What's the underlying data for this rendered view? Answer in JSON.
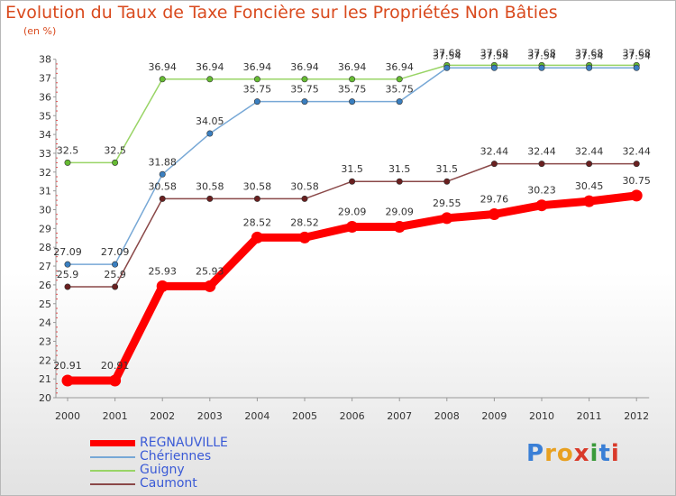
{
  "title": "Evolution du Taux de Taxe Foncière sur les Propriétés Non Bâties",
  "unit": "(en %)",
  "logo": {
    "letters": [
      "P",
      "r",
      "o",
      "x",
      "i",
      "t",
      "i"
    ],
    "colors": [
      "#3a7fd6",
      "#e8a020",
      "#e8a020",
      "#d93a2a",
      "#3a9a3a",
      "#3a7fd6",
      "#d93a2a"
    ]
  },
  "chart_data": {
    "type": "line",
    "title": "Evolution du Taux de Taxe Foncière sur les Propriétés Non Bâties",
    "ylabel": "(en %)",
    "ylim": [
      20,
      38
    ],
    "yticks": [
      "20",
      "21",
      "22",
      "23",
      "24",
      "25",
      "26",
      "27",
      "28",
      "29",
      "30",
      "31",
      "32",
      "33",
      "34",
      "35",
      "36",
      "37",
      "38"
    ],
    "categories": [
      "2000",
      "2001",
      "2002",
      "2003",
      "2004",
      "2005",
      "2006",
      "2007",
      "2008",
      "2009",
      "2010",
      "2011",
      "2012"
    ],
    "series": [
      {
        "name": "Guigny",
        "color": "#99d466",
        "marker": "#66bb33",
        "values": [
          32.5,
          32.5,
          36.94,
          36.94,
          36.94,
          36.94,
          36.94,
          36.94,
          37.68,
          37.68,
          37.68,
          37.68,
          37.68
        ],
        "labels": [
          "32.5",
          "32.5",
          "36.94",
          "36.94",
          "36.94",
          "36.94",
          "36.94",
          "36.94",
          "37.68",
          "37.68",
          "37.68",
          "37.68",
          "37.68"
        ]
      },
      {
        "name": "Chériennes",
        "color": "#77a8d6",
        "marker": "#3a7fc0",
        "values": [
          27.09,
          27.09,
          31.88,
          34.05,
          35.75,
          35.75,
          35.75,
          35.75,
          37.54,
          37.54,
          37.54,
          37.54,
          37.54
        ],
        "labels": [
          "27.09",
          "27.09",
          "31.88",
          "34.05",
          "35.75",
          "35.75",
          "35.75",
          "35.75",
          "37.54",
          "37.54",
          "37.54",
          "37.54",
          "37.54"
        ]
      },
      {
        "name": "Caumont",
        "color": "#8a4848",
        "marker": "#6a2020",
        "values": [
          25.9,
          25.9,
          30.58,
          30.58,
          30.58,
          30.58,
          31.5,
          31.5,
          31.5,
          32.44,
          32.44,
          32.44,
          32.44
        ],
        "labels": [
          "25.9",
          "25.9",
          "30.58",
          "30.58",
          "30.58",
          "30.58",
          "31.5",
          "31.5",
          "31.5",
          "32.44",
          "32.44",
          "32.44",
          "32.44"
        ]
      },
      {
        "name": "REGNAUVILLE",
        "color": "#ff0000",
        "marker": "#ff0000",
        "values": [
          20.91,
          20.91,
          25.93,
          25.93,
          28.52,
          28.52,
          29.09,
          29.09,
          29.55,
          29.76,
          30.23,
          30.45,
          30.75
        ],
        "labels": [
          "20.91",
          "20.91",
          "25.93",
          "25.93",
          "28.52",
          "28.52",
          "29.09",
          "29.09",
          "29.55",
          "29.76",
          "30.23",
          "30.45",
          "30.75"
        ]
      }
    ],
    "legend": [
      {
        "name": "REGNAUVILLE",
        "color": "#ff0000"
      },
      {
        "name": "Chériennes",
        "color": "#77a8d6"
      },
      {
        "name": "Guigny",
        "color": "#99d466"
      },
      {
        "name": "Caumont",
        "color": "#8a4848"
      }
    ],
    "legend_text_color": "#3a5ad6"
  }
}
